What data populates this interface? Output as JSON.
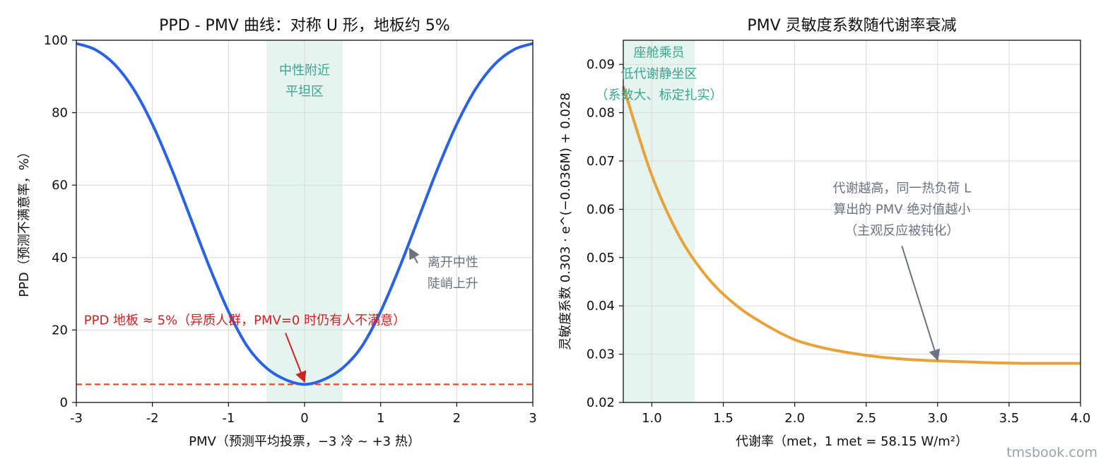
{
  "watermark": "tmsbook.com",
  "chart_data": [
    {
      "type": "line",
      "title": "PPD - PMV 曲线：对称 U 形，地板约 5%",
      "xlabel": "PMV（预测平均投票，−3 冷 ~ +3 热）",
      "ylabel": "PPD（预测不满意率，%）",
      "xlim": [
        -3,
        3
      ],
      "ylim": [
        0,
        100
      ],
      "xticks": [
        -3,
        -2,
        -1,
        0,
        1,
        2,
        3
      ],
      "xtick_labels": [
        "-3",
        "-2",
        "-1",
        "0",
        "1",
        "2",
        "3"
      ],
      "yticks": [
        0,
        20,
        40,
        60,
        80,
        100
      ],
      "grid": true,
      "series": [
        {
          "color": "#2962e8",
          "x": [
            -3,
            -2.75,
            -2.5,
            -2.25,
            -2,
            -1.75,
            -1.5,
            -1.25,
            -1,
            -0.75,
            -0.5,
            -0.25,
            0,
            0.25,
            0.5,
            0.75,
            1,
            1.25,
            1.5,
            1.75,
            2,
            2.25,
            2.5,
            2.75,
            3
          ],
          "y": [
            99.1,
            97.4,
            93.4,
            86.6,
            76.8,
            64.6,
            51.0,
            37.4,
            25.1,
            15.4,
            9.5,
            6.3,
            5.0,
            6.3,
            9.5,
            15.4,
            25.1,
            37.4,
            51.0,
            64.6,
            76.8,
            86.6,
            93.4,
            97.4,
            99.1
          ]
        }
      ],
      "reference_line": {
        "y": 5,
        "color": "#e84a2a",
        "style": "dashed"
      },
      "shaded_band": {
        "x": [
          -0.5,
          0.5
        ],
        "color": "#e6f4f0"
      },
      "annotations": [
        {
          "lines": [
            "中性附近",
            "平坦区"
          ],
          "color": "#3aa58c",
          "x": 0,
          "y": 90.5
        },
        {
          "lines": [
            "离开中性",
            "陡峭上升"
          ],
          "color": "#6b7280",
          "x": 1.95,
          "y": 37.5,
          "arrow_to": [
            1.38,
            42.5
          ]
        },
        {
          "lines": [
            "PPD 地板 ≈ 5%（异质人群，PMV=0 时仍有人不满意）"
          ],
          "color": "#cc2222",
          "x": -2.9,
          "y": 21.5,
          "arrow_to": [
            0,
            5.7
          ]
        }
      ]
    },
    {
      "type": "line",
      "title": "PMV 灵敏度系数随代谢率衰减",
      "xlabel": "代谢率（met，1 met = 58.15 W/m²）",
      "ylabel": "灵敏度系数 0.303 · e^(−0.036M) + 0.028",
      "xlim": [
        0.8,
        4.0
      ],
      "ylim": [
        0.02,
        0.095
      ],
      "xticks": [
        1.0,
        1.5,
        2.0,
        2.5,
        3.0,
        3.5,
        4.0
      ],
      "xtick_labels": [
        "1.0",
        "1.5",
        "2.0",
        "2.5",
        "3.0",
        "3.5",
        "4.0"
      ],
      "yticks": [
        0.02,
        0.03,
        0.04,
        0.05,
        0.06,
        0.07,
        0.08,
        0.09
      ],
      "ytick_labels": [
        "0.02",
        "0.03",
        "0.04",
        "0.05",
        "0.06",
        "0.07",
        "0.08",
        "0.09"
      ],
      "grid": true,
      "series": [
        {
          "color": "#e8a23a",
          "x": [
            0.8,
            1.0,
            1.2,
            1.4,
            1.6,
            1.8,
            2.0,
            2.2,
            2.4,
            2.6,
            2.8,
            3.0,
            3.2,
            3.4,
            3.6,
            3.8,
            4.0
          ],
          "y": [
            0.0855,
            0.067,
            0.054,
            0.0455,
            0.0399,
            0.036,
            0.033,
            0.0313,
            0.0302,
            0.0294,
            0.0289,
            0.0286,
            0.0284,
            0.0282,
            0.0281,
            0.0281,
            0.0281
          ]
        }
      ],
      "shaded_band": {
        "x": [
          0.8,
          1.3
        ],
        "color": "#e6f4f0"
      },
      "annotations": [
        {
          "lines": [
            "座舱乘员",
            "低代谢静坐区",
            "（系数大、标定扎实）"
          ],
          "color": "#3aa58c",
          "x": 1.05,
          "y": 0.0916
        },
        {
          "lines": [
            "代谢越高，同一热负荷 L",
            "算出的 PMV 绝对值越小",
            "（主观反应被钝化）"
          ],
          "color": "#6b7280",
          "x": 2.75,
          "y": 0.0635,
          "arrow_to": [
            3.0,
            0.0288
          ]
        }
      ]
    }
  ]
}
